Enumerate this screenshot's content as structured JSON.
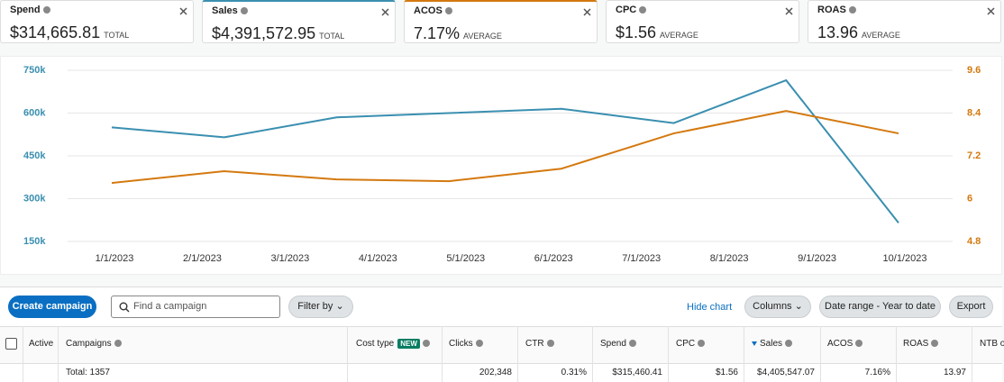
{
  "metrics": [
    {
      "label": "Spend",
      "value": "$314,665.81",
      "unit": "TOTAL"
    },
    {
      "label": "Sales",
      "value": "$4,391,572.95",
      "unit": "TOTAL",
      "accent": "#3a8fb0"
    },
    {
      "label": "ACOS",
      "value": "7.17%",
      "unit": "AVERAGE",
      "accent": "#d4790f"
    },
    {
      "label": "CPC",
      "value": "$1.56",
      "unit": "AVERAGE"
    },
    {
      "label": "ROAS",
      "value": "13.96",
      "unit": "AVERAGE"
    }
  ],
  "chart_data": {
    "type": "line",
    "xticks": [
      "1/1/2023",
      "2/1/2023",
      "3/1/2023",
      "4/1/2023",
      "5/1/2023",
      "6/1/2023",
      "7/1/2023",
      "8/1/2023",
      "9/1/2023",
      "10/1/2023"
    ],
    "series": [
      {
        "color": "#3a8fb0",
        "values": [
          550000,
          515000,
          585000,
          600000,
          615000,
          565000,
          715000,
          215000
        ]
      },
      {
        "color": "#d4790f",
        "axis": "y2",
        "values": [
          6.44,
          6.77,
          6.54,
          6.49,
          6.84,
          7.83,
          8.46,
          7.83
        ]
      }
    ],
    "ylim": [
      150000,
      750000
    ],
    "yticks": [
      {
        "value": 150000,
        "label": "150k"
      },
      {
        "value": 300000,
        "label": "300k"
      },
      {
        "value": 450000,
        "label": "450k"
      },
      {
        "value": 600000,
        "label": "600k"
      },
      {
        "value": 750000,
        "label": "750k"
      }
    ],
    "y2lim": [
      4.8,
      9.6
    ],
    "y2ticks": [
      4.8,
      6,
      7.2,
      8.4,
      9.6
    ],
    "grid": true
  },
  "toolbar": {
    "create": "Create campaign",
    "search_placeholder": "Find a campaign",
    "filter": "Filter by",
    "hide_chart": "Hide chart",
    "columns": "Columns",
    "date_range": "Date range - Year to date",
    "export": "Export"
  },
  "table": {
    "columns": [
      "Active",
      "Campaigns",
      "Cost type",
      "Clicks",
      "CTR",
      "Spend",
      "CPC",
      "Sales",
      "ACOS",
      "ROAS",
      "NTB o"
    ],
    "new_badge": "NEW",
    "total_label": "Total: 1357",
    "totals": [
      "202,348",
      "0.31%",
      "$315,460.41",
      "$1.56",
      "$4,405,547.07",
      "7.16%",
      "13.97"
    ]
  }
}
